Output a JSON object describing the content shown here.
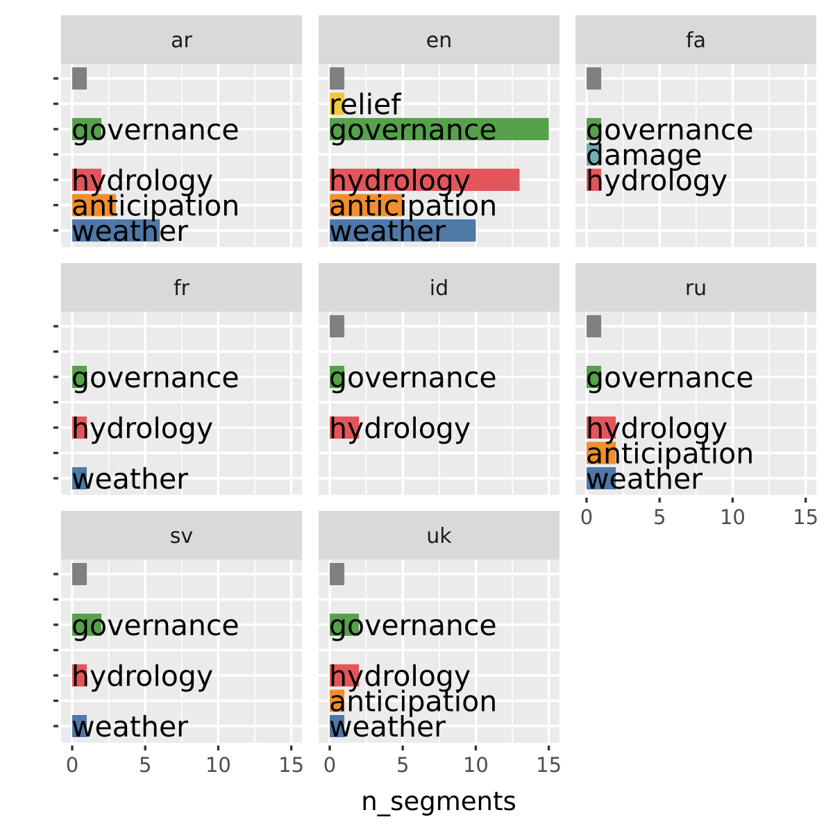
{
  "chart_data": {
    "type": "bar",
    "orientation": "horizontal",
    "facet_layout": "wrap-3-columns",
    "xlabel": "n_segments",
    "ylabel": "",
    "xlim": [
      0,
      15
    ],
    "x_ticks": [
      0,
      5,
      10,
      15
    ],
    "grid": true,
    "legend": "none",
    "categories": [
      "",
      "relief",
      "governance",
      "damage",
      "hydrology",
      "anticipation",
      "weather"
    ],
    "colors": {
      "": "#808080",
      "relief": "#F0C93E",
      "governance": "#57A14D",
      "damage": "#6FAFB1",
      "hydrology": "#E2565B",
      "anticipation": "#F28E2B",
      "weather": "#4E79A7"
    },
    "panels": [
      {
        "facet": "ar",
        "bars": [
          {
            "category": "",
            "value": 1
          },
          {
            "category": "governance",
            "value": 2
          },
          {
            "category": "hydrology",
            "value": 2
          },
          {
            "category": "anticipation",
            "value": 3
          },
          {
            "category": "weather",
            "value": 6
          }
        ]
      },
      {
        "facet": "en",
        "bars": [
          {
            "category": "",
            "value": 1
          },
          {
            "category": "relief",
            "value": 1
          },
          {
            "category": "governance",
            "value": 15
          },
          {
            "category": "hydrology",
            "value": 13
          },
          {
            "category": "anticipation",
            "value": 5
          },
          {
            "category": "weather",
            "value": 10
          }
        ]
      },
      {
        "facet": "fa",
        "bars": [
          {
            "category": "",
            "value": 1
          },
          {
            "category": "governance",
            "value": 1
          },
          {
            "category": "damage",
            "value": 1
          },
          {
            "category": "hydrology",
            "value": 1
          }
        ]
      },
      {
        "facet": "fr",
        "bars": [
          {
            "category": "governance",
            "value": 1
          },
          {
            "category": "hydrology",
            "value": 1
          },
          {
            "category": "weather",
            "value": 1
          }
        ]
      },
      {
        "facet": "id",
        "bars": [
          {
            "category": "",
            "value": 1
          },
          {
            "category": "governance",
            "value": 1
          },
          {
            "category": "hydrology",
            "value": 2
          }
        ]
      },
      {
        "facet": "ru",
        "bars": [
          {
            "category": "",
            "value": 1
          },
          {
            "category": "governance",
            "value": 1
          },
          {
            "category": "hydrology",
            "value": 2
          },
          {
            "category": "anticipation",
            "value": 2
          },
          {
            "category": "weather",
            "value": 2
          }
        ]
      },
      {
        "facet": "sv",
        "bars": [
          {
            "category": "",
            "value": 1
          },
          {
            "category": "governance",
            "value": 2
          },
          {
            "category": "hydrology",
            "value": 1
          },
          {
            "category": "weather",
            "value": 1
          }
        ]
      },
      {
        "facet": "uk",
        "bars": [
          {
            "category": "",
            "value": 1
          },
          {
            "category": "governance",
            "value": 2
          },
          {
            "category": "hydrology",
            "value": 2
          },
          {
            "category": "anticipation",
            "value": 1
          },
          {
            "category": "weather",
            "value": 1
          }
        ]
      }
    ]
  }
}
